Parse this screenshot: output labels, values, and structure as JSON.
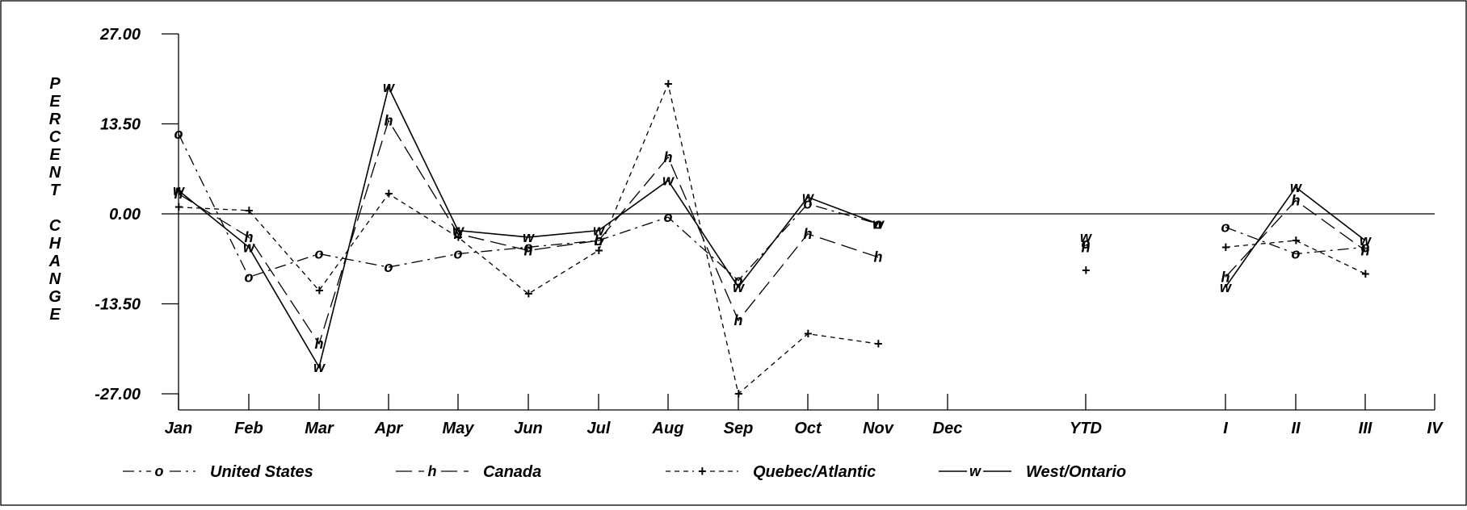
{
  "chart_data": {
    "type": "line",
    "title": "",
    "ylabel": "PERCENT CHANGE",
    "xlabel": "",
    "ylim": [
      -27,
      27
    ],
    "yticks": [
      27,
      13.5,
      0,
      -13.5,
      -27
    ],
    "ytick_labels": [
      "27.00",
      "13.50",
      "0.00",
      "-13.50",
      "-27.00"
    ],
    "x_labels": [
      "Jan",
      "Feb",
      "Mar",
      "Apr",
      "May",
      "Jun",
      "Jul",
      "Aug",
      "Sep",
      "Oct",
      "Nov",
      "Dec",
      "YTD",
      "I",
      "II",
      "III",
      "IV"
    ],
    "zero_line": true,
    "legend_position": "bottom",
    "series": [
      {
        "name": "United States",
        "marker": "o",
        "line_style": "dash-dot",
        "monthly": [
          12,
          -9.5,
          -6,
          -8,
          -6,
          -5,
          -4,
          -0.5,
          -10,
          1.5,
          -1.5,
          null
        ],
        "ytd": -4.5,
        "quarterly": [
          -2,
          -6,
          -5,
          null
        ]
      },
      {
        "name": "Canada",
        "marker": "h",
        "line_style": "long-dash",
        "monthly": [
          3,
          -3.5,
          -19.5,
          14,
          -3,
          -5.5,
          -4,
          8.5,
          -16,
          -3,
          -6.5,
          null
        ],
        "ytd": -5,
        "quarterly": [
          -9.5,
          2,
          -5.5,
          null
        ]
      },
      {
        "name": "Quebec/Atlantic",
        "marker": "+",
        "line_style": "short-dash",
        "monthly": [
          1,
          0.5,
          -11.5,
          3,
          -3.5,
          -12,
          -5.5,
          19.5,
          -27,
          -18,
          -19.5,
          null
        ],
        "ytd": -8.5,
        "quarterly": [
          -5,
          -4,
          -9,
          null
        ]
      },
      {
        "name": "West/Ontario",
        "marker": "w",
        "line_style": "solid",
        "monthly": [
          3.5,
          -5,
          -23,
          19,
          -2.5,
          -3.5,
          -2.5,
          5,
          -11,
          2.5,
          -1.5,
          null
        ],
        "ytd": -3.5,
        "quarterly": [
          -11,
          4,
          -4,
          null
        ]
      }
    ]
  }
}
